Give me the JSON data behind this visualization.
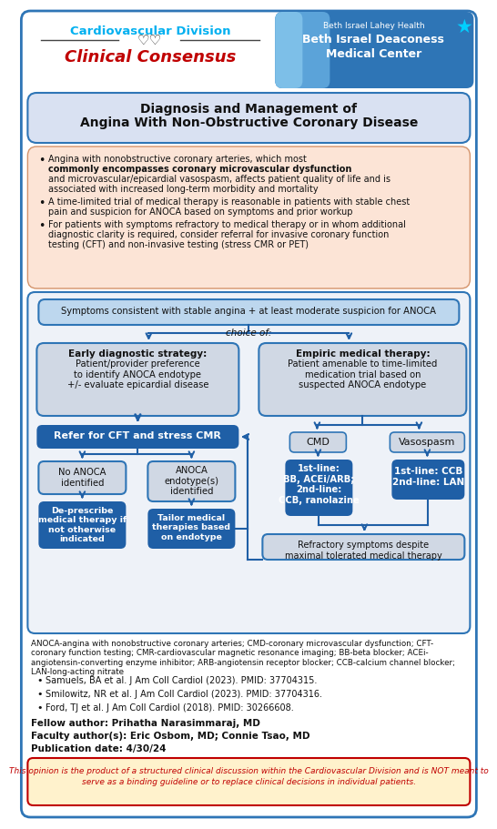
{
  "title_line1": "Diagnosis and Management of",
  "title_line2": "Angina With Non-Obstructive Coronary Disease",
  "header_left_line1": "Cardiovascular Division",
  "header_left_line2": "Clinical Consensus",
  "header_right_line1": "Beth Israel Lahey Health",
  "header_right_line2": "Beth Israel Deaconess",
  "header_right_line3": "Medical Center",
  "bullet1a": "Angina with nonobstructive coronary arteries, which most",
  "bullet1b": "commonly encompasses coronary microvascular dysfunction",
  "bullet1c": "and microvascular/epicardial vasospasm, affects patient quality of life and is",
  "bullet1d": "associated with increased long-term morbidity and mortality",
  "bullet2a": "A time-limited trial of medical therapy is reasonable in patients with stable chest",
  "bullet2b": "pain and suspicion for ANOCA based on symptoms and prior workup",
  "bullet3a": "For patients with symptoms refractory to medical therapy or in whom additional",
  "bullet3b": "diagnostic clarity is required, consider referral for invasive coronary function",
  "bullet3c": "testing (CFT) and non-invasive testing (stress CMR or PET)",
  "flow_top": "Symptoms consistent with stable angina + at least moderate suspicion for ANOCA",
  "choice_label": "choice of:",
  "flow_left_title": "Early diagnostic strategy:",
  "flow_left_body": "Patient/provider preference\nto identify ANOCA endotype\n+/- evaluate epicardial disease",
  "flow_right_title": "Empiric medical therapy:",
  "flow_right_body": "Patient amenable to time-limited\nmedication trial based on\nsuspected ANOCA endotype",
  "flow_refer": "Refer for CFT and stress CMR",
  "flow_no_anoca": "No ANOCA\nidentified",
  "flow_anoca": "ANOCA\nendotype(s)\nidentified",
  "flow_deprescribe": "De-prescribe\nmedical therapy if\nnot otherwise\nindicated",
  "flow_tailor": "Tailor medical\ntherapies based\non endotype",
  "flow_cmd": "CMD",
  "flow_vasospasm": "Vasospasm",
  "flow_cmd_rx": "1st-line:\nBB, ACEi/ARB;\n2nd-line:\nCCB, ranolazine",
  "flow_vaso_rx": "1st-line: CCB\n2nd-line: LAN",
  "flow_refractory": "Refractory symptoms despite\nmaximal tolerated medical therapy",
  "abbrev": "ANOCA-angina with nonobstructive coronary arteries; CMD-coronary microvascular dysfunction; CFT-\ncoronary function testing; CMR-cardiovascular magnetic resonance imaging; BB-beta blocker; ACEi-\nangiotensin-converting enzyme inhibitor; ARB-angiotensin receptor blocker; CCB-calcium channel blocker;\nLAN-long-acting nitrate",
  "ref1": "Samuels, BA et al. J Am Coll Cardiol (2023). PMID: 37704315.",
  "ref2": "Smilowitz, NR et al. J Am Coll Cardiol (2023). PMID: 37704316.",
  "ref3": "Ford, TJ et al. J Am Coll Cardiol (2018). PMID: 30266608.",
  "fellow": "Fellow author: Prihatha Narasimmaraj, MD",
  "faculty": "Faculty author(s): Eric Osbom, MD; Connie Tsao, MD",
  "pubdate": "Publication date: 4/30/24",
  "disclaimer": "This opinion is the product of a structured clinical discussion within the Cardiovascular Division and is NOT meant to",
  "disclaimer2": "serve as a binding guideline or to replace clinical decisions in individual patients.",
  "color_blue_dark": "#1F5FA6",
  "color_blue_med": "#2E75B6",
  "color_blue_light": "#BDD7EE",
  "color_blue_header": "#00B0F0",
  "color_orange_bg": "#FCE4D6",
  "color_title_bg": "#D9E1F2",
  "color_gray_box": "#D0D8E4",
  "color_flow_bg": "#EEF2F8",
  "color_border": "#2E75B6",
  "color_dark_blue_box": "#1F5FA6",
  "color_disclaimer_bg": "#FFF2CC",
  "color_red": "#C00000"
}
